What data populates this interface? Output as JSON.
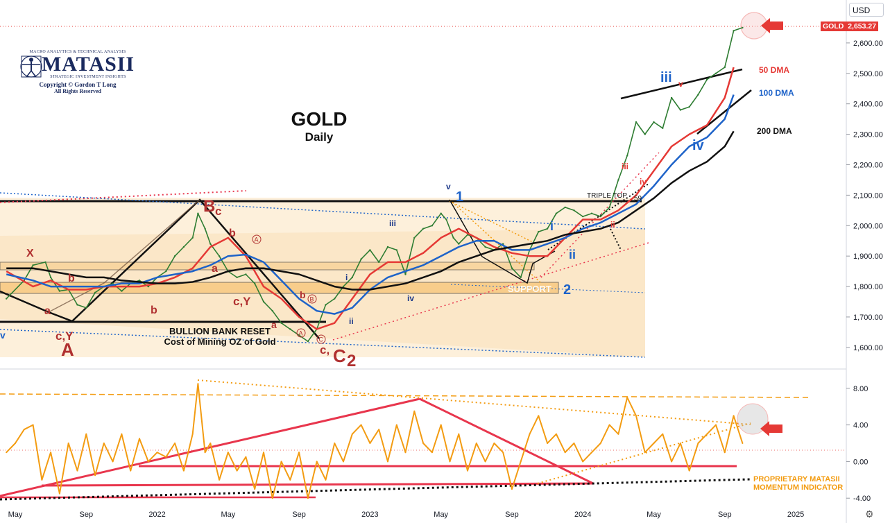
{
  "header": {
    "currency": "USD",
    "title": "GOLD",
    "subtitle": "Daily"
  },
  "logo": {
    "top_line": "MACRO ANALYTICS & TECHNICAL ANALYSIS",
    "name": "MATASII",
    "tagline": "STRATEGIC INVESTMENT INSIGHTS",
    "copyright": "Copyright © Gordon T Long",
    "rights": "All Rights Reserved"
  },
  "price_tag": {
    "symbol": "GOLD",
    "value": "2,653.27"
  },
  "notes": {
    "bullion_line1": "BULLION BANK RESET",
    "bullion_line2": "Cost of Mining OZ of Gold",
    "momentum_line1": "PROPRIETARY MATASII",
    "momentum_line2": "MOMENTUM INDICATOR",
    "support": "SUPPORT",
    "triple_top": "TRIPLE TOP"
  },
  "moving_averages": [
    {
      "label": "50 DMA",
      "color": "#e53935"
    },
    {
      "label": "100 DMA",
      "color": "#1e63c9"
    },
    {
      "label": "200 DMA",
      "color": "#111111"
    }
  ],
  "colors": {
    "candles": "#2e7d32",
    "momentum": "#f39c12",
    "wave_red": "#b03030",
    "wave_blue": "#1e63c9",
    "trend_red": "#e8364d",
    "channel_fill": "#f9d9a8"
  },
  "chart_data": [
    {
      "type": "line",
      "title": "GOLD",
      "subtitle": "Daily",
      "ylabel": "USD",
      "ylim": [
        1545,
        2700
      ],
      "x_ticks": [
        {
          "t": 0,
          "label": "May"
        },
        {
          "t": 4,
          "label": "Sep"
        },
        {
          "t": 8,
          "label": "2022"
        },
        {
          "t": 12,
          "label": "May"
        },
        {
          "t": 16,
          "label": "Sep"
        },
        {
          "t": 20,
          "label": "2023"
        },
        {
          "t": 24,
          "label": "May"
        },
        {
          "t": 28,
          "label": "Sep"
        },
        {
          "t": 32,
          "label": "2024"
        },
        {
          "t": 36,
          "label": "May"
        },
        {
          "t": 40,
          "label": "Sep"
        },
        {
          "t": 44,
          "label": "2025"
        }
      ],
      "y_ticks": [
        "1,600.00",
        "1,700.00",
        "1,800.00",
        "1,900.00",
        "2,000.00",
        "2,100.00",
        "2,200.00",
        "2,300.00",
        "2,400.00",
        "2,500.00",
        "2,600.00"
      ],
      "y_tick_values": [
        1600,
        1700,
        1800,
        1900,
        2000,
        2100,
        2200,
        2300,
        2400,
        2500,
        2600
      ],
      "series": [
        {
          "name": "GOLD",
          "t": [
            -0.5,
            0.5,
            1,
            1.7,
            2,
            2.5,
            3,
            3.5,
            4,
            4.5,
            5,
            5.5,
            6,
            6.5,
            7,
            7.5,
            8,
            8.5,
            9,
            9.5,
            10,
            10.3,
            10.7,
            11,
            11.5,
            12,
            12.5,
            13,
            13.5,
            14,
            14.5,
            15,
            15.5,
            16,
            16.5,
            17,
            17.5,
            18,
            18.5,
            19,
            19.5,
            20,
            20.5,
            21,
            21.5,
            22,
            22.5,
            23,
            23.5,
            24,
            24.3,
            24.7,
            25,
            25.5,
            26,
            26.5,
            27,
            27.5,
            28,
            28.5,
            29,
            29.5,
            30,
            30.5,
            31,
            31.5,
            32,
            32.5,
            33,
            33.5,
            34,
            34.5,
            35,
            35.5,
            36,
            36.5,
            37,
            37.5,
            38,
            38.5,
            39,
            39.5,
            40,
            40.5,
            41
          ],
          "values": [
            1760,
            1820,
            1870,
            1880,
            1830,
            1785,
            1790,
            1740,
            1730,
            1780,
            1800,
            1810,
            1785,
            1810,
            1820,
            1800,
            1830,
            1850,
            1900,
            1930,
            1960,
            2040,
            1990,
            1940,
            1900,
            1850,
            1830,
            1840,
            1810,
            1750,
            1720,
            1680,
            1660,
            1640,
            1620,
            1660,
            1740,
            1760,
            1800,
            1830,
            1890,
            1920,
            1880,
            1930,
            1920,
            1840,
            1960,
            1990,
            2000,
            2040,
            2020,
            1960,
            1940,
            1970,
            1960,
            1930,
            1920,
            1940,
            1860,
            1830,
            1920,
            1980,
            1990,
            2040,
            2060,
            2050,
            2030,
            2040,
            2030,
            2060,
            2150,
            2230,
            2340,
            2300,
            2340,
            2320,
            2420,
            2380,
            2390,
            2430,
            2480,
            2500,
            2520,
            2640,
            2650
          ]
        },
        {
          "name": "50 DMA",
          "t": [
            -0.5,
            1,
            2,
            3,
            4,
            5,
            6,
            7,
            8,
            9,
            10,
            11,
            12,
            13,
            14,
            15,
            16,
            17,
            18,
            19,
            20,
            21,
            22,
            23,
            24,
            25,
            26,
            27,
            28,
            29,
            30,
            31,
            32,
            33,
            34,
            35,
            36,
            37,
            38,
            39,
            40,
            40.5
          ],
          "values": [
            1850,
            1800,
            1820,
            1790,
            1790,
            1800,
            1800,
            1800,
            1810,
            1830,
            1860,
            1930,
            1960,
            1900,
            1800,
            1760,
            1700,
            1660,
            1680,
            1760,
            1840,
            1880,
            1880,
            1910,
            1960,
            1990,
            1960,
            1930,
            1910,
            1900,
            1900,
            1960,
            2020,
            2020,
            2050,
            2100,
            2180,
            2260,
            2300,
            2330,
            2420,
            2520
          ]
        },
        {
          "name": "100 DMA",
          "t": [
            -0.5,
            1,
            2,
            3,
            4,
            5,
            6,
            7,
            8,
            9,
            10,
            11,
            12,
            13,
            14,
            15,
            16,
            17,
            18,
            19,
            20,
            21,
            22,
            23,
            24,
            25,
            26,
            27,
            28,
            29,
            30,
            31,
            32,
            33,
            34,
            35,
            36,
            37,
            38,
            39,
            40,
            40.5
          ],
          "values": [
            1840,
            1820,
            1800,
            1800,
            1800,
            1800,
            1810,
            1810,
            1830,
            1840,
            1850,
            1870,
            1900,
            1905,
            1880,
            1820,
            1760,
            1720,
            1710,
            1730,
            1790,
            1830,
            1850,
            1870,
            1900,
            1930,
            1950,
            1950,
            1920,
            1920,
            1940,
            1960,
            1990,
            2010,
            2040,
            2070,
            2130,
            2200,
            2260,
            2290,
            2350,
            2430
          ]
        },
        {
          "name": "200 DMA",
          "t": [
            -0.5,
            1,
            2,
            3,
            4,
            5,
            6,
            7,
            8,
            9,
            10,
            11,
            12,
            13,
            14,
            15,
            16,
            17,
            18,
            19,
            20,
            21,
            22,
            23,
            24,
            25,
            26,
            27,
            28,
            29,
            30,
            31,
            32,
            33,
            34,
            35,
            36,
            37,
            38,
            39,
            40,
            40.5
          ],
          "values": [
            1860,
            1860,
            1850,
            1840,
            1830,
            1830,
            1820,
            1815,
            1810,
            1810,
            1815,
            1830,
            1850,
            1860,
            1860,
            1850,
            1840,
            1820,
            1800,
            1790,
            1790,
            1800,
            1810,
            1830,
            1850,
            1880,
            1900,
            1920,
            1930,
            1940,
            1950,
            1970,
            1980,
            1990,
            2010,
            2050,
            2090,
            2140,
            2180,
            2210,
            2260,
            2310
          ]
        }
      ]
    },
    {
      "type": "line",
      "title": "PROPRIETARY MATASII MOMENTUM INDICATOR",
      "ylim": [
        -5.5,
        9.5
      ],
      "y_ticks": [
        "8.00",
        "4.00",
        "0.00",
        "-4.00"
      ],
      "y_tick_values": [
        8,
        4,
        0,
        -4
      ],
      "series": [
        {
          "name": "Momentum",
          "t": [
            -0.5,
            0,
            0.5,
            1,
            1.5,
            2,
            2.5,
            3,
            3.5,
            4,
            4.5,
            5,
            5.5,
            6,
            6.5,
            7,
            7.5,
            8,
            8.5,
            9,
            9.5,
            10,
            10.3,
            10.7,
            11,
            11.5,
            12,
            12.5,
            13,
            13.5,
            14,
            14.5,
            15,
            15.5,
            16,
            16.5,
            17,
            17.5,
            18,
            18.5,
            19,
            19.5,
            20,
            20.5,
            21,
            21.5,
            22,
            22.5,
            23,
            23.5,
            24,
            24.5,
            25,
            25.5,
            26,
            26.5,
            27,
            27.5,
            28,
            28.5,
            29,
            29.5,
            30,
            30.5,
            31,
            31.5,
            32,
            32.5,
            33,
            33.5,
            34,
            34.5,
            35,
            35.5,
            36,
            36.5,
            37,
            37.5,
            38,
            38.5,
            39,
            39.5,
            40,
            40.5,
            41
          ],
          "values": [
            1,
            2,
            3.5,
            4,
            -2,
            1,
            -3.5,
            2,
            -1,
            3,
            -1.5,
            2,
            0,
            3,
            -1,
            2.5,
            0,
            1,
            0.5,
            2,
            -1,
            3,
            8.5,
            1,
            2,
            -2,
            1,
            -1,
            0.5,
            -3,
            1,
            -4,
            0,
            -2,
            1,
            -4,
            0,
            -2,
            2,
            0,
            3,
            4,
            2,
            3.5,
            0,
            4,
            1,
            5.5,
            2,
            1,
            4,
            0,
            3,
            -1,
            2,
            0,
            2,
            1,
            -3,
            0,
            3,
            5,
            2,
            3,
            1,
            2,
            0,
            1,
            2,
            4,
            3,
            7,
            5,
            1,
            2,
            3,
            0,
            2,
            -1,
            2,
            3,
            4,
            1,
            5,
            2
          ]
        }
      ]
    }
  ]
}
